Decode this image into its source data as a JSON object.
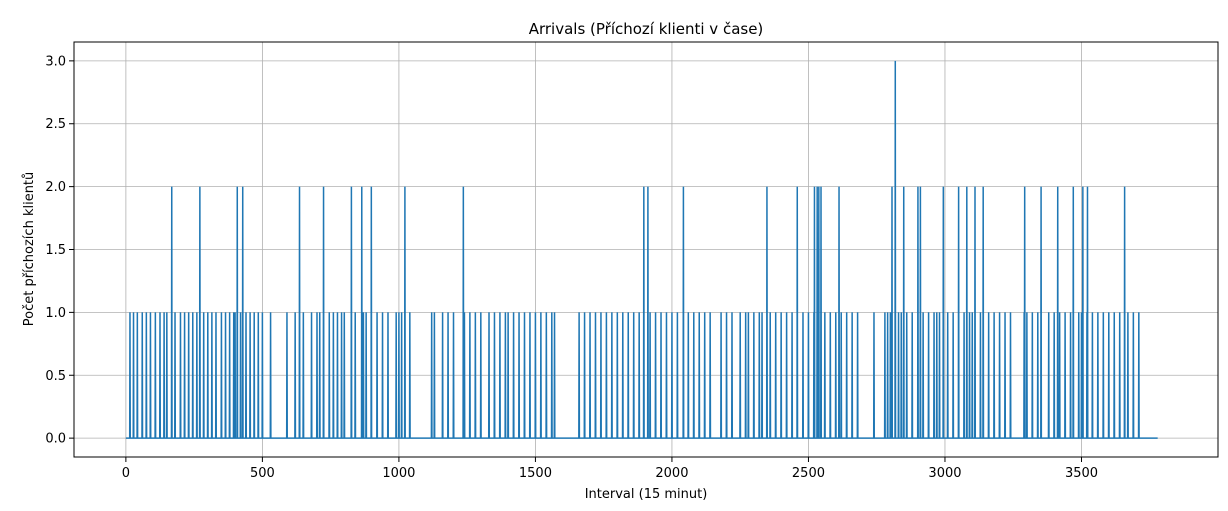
{
  "chart_data": {
    "type": "line",
    "title": "Arrivals (Příchozí klienti v čase)",
    "xlabel": "Interval (15 minut)",
    "ylabel": "Počet příchozích klientů",
    "xlim": [
      -190,
      4000
    ],
    "ylim": [
      -0.15,
      3.15
    ],
    "xticks": [
      0,
      500,
      1000,
      1500,
      2000,
      2500,
      3000,
      3500
    ],
    "xtick_labels": [
      "0",
      "500",
      "1000",
      "1500",
      "2000",
      "2500",
      "3000",
      "3500"
    ],
    "yticks": [
      0.0,
      0.5,
      1.0,
      1.5,
      2.0,
      2.5,
      3.0
    ],
    "ytick_labels": [
      "0.0",
      "0.5",
      "1.0",
      "1.5",
      "2.0",
      "2.5",
      "3.0"
    ],
    "grid": true,
    "line_color": "#1f77b4",
    "n_points": 3780,
    "baseline": 0,
    "approx_arrivals_of_1_at_intervals": [
      15,
      28,
      42,
      60,
      75,
      90,
      108,
      125,
      140,
      150,
      180,
      200,
      215,
      230,
      245,
      260,
      285,
      300,
      315,
      330,
      350,
      365,
      380,
      395,
      400,
      420,
      440,
      455,
      470,
      485,
      500,
      530,
      590,
      620,
      650,
      680,
      700,
      710,
      745,
      760,
      775,
      790,
      800,
      840,
      870,
      880,
      920,
      940,
      960,
      990,
      1000,
      1010,
      1040,
      1120,
      1130,
      1160,
      1180,
      1200,
      1240,
      1260,
      1280,
      1300,
      1330,
      1350,
      1370,
      1390,
      1400,
      1420,
      1440,
      1460,
      1480,
      1500,
      1520,
      1540,
      1560,
      1570,
      1660,
      1680,
      1700,
      1720,
      1740,
      1760,
      1780,
      1800,
      1820,
      1840,
      1860,
      1880,
      1920,
      1940,
      1960,
      1980,
      2000,
      2020,
      2060,
      2080,
      2100,
      2120,
      2140,
      2180,
      2200,
      2220,
      2250,
      2270,
      2280,
      2300,
      2320,
      2330,
      2360,
      2380,
      2400,
      2420,
      2440,
      2480,
      2500,
      2520,
      2560,
      2580,
      2600,
      2620,
      2640,
      2660,
      2680,
      2740,
      2780,
      2790,
      2800,
      2830,
      2840,
      2860,
      2880,
      2920,
      2940,
      2960,
      2970,
      2980,
      3010,
      3030,
      3050,
      3070,
      3090,
      3100,
      3130,
      3160,
      3180,
      3200,
      3220,
      3240,
      3290,
      3300,
      3320,
      3340,
      3380,
      3400,
      3420,
      3440,
      3460,
      3490,
      3500,
      3520,
      3540,
      3560,
      3580,
      3600,
      3620,
      3640,
      3670,
      3690,
      3710
    ],
    "approx_arrivals_of_2_at_intervals": [
      168,
      271,
      408,
      428,
      636,
      724,
      826,
      864,
      899,
      1022,
      1236,
      1897,
      1912,
      2042,
      2348,
      2459,
      2522,
      2532,
      2538,
      2546,
      2612,
      2806,
      2849,
      2901,
      2910,
      2994,
      3050,
      3080,
      3110,
      3140,
      3292,
      3352,
      3413,
      3470,
      3505,
      3522,
      3658
    ],
    "approx_arrivals_of_3_at_intervals": [
      2818
    ]
  }
}
